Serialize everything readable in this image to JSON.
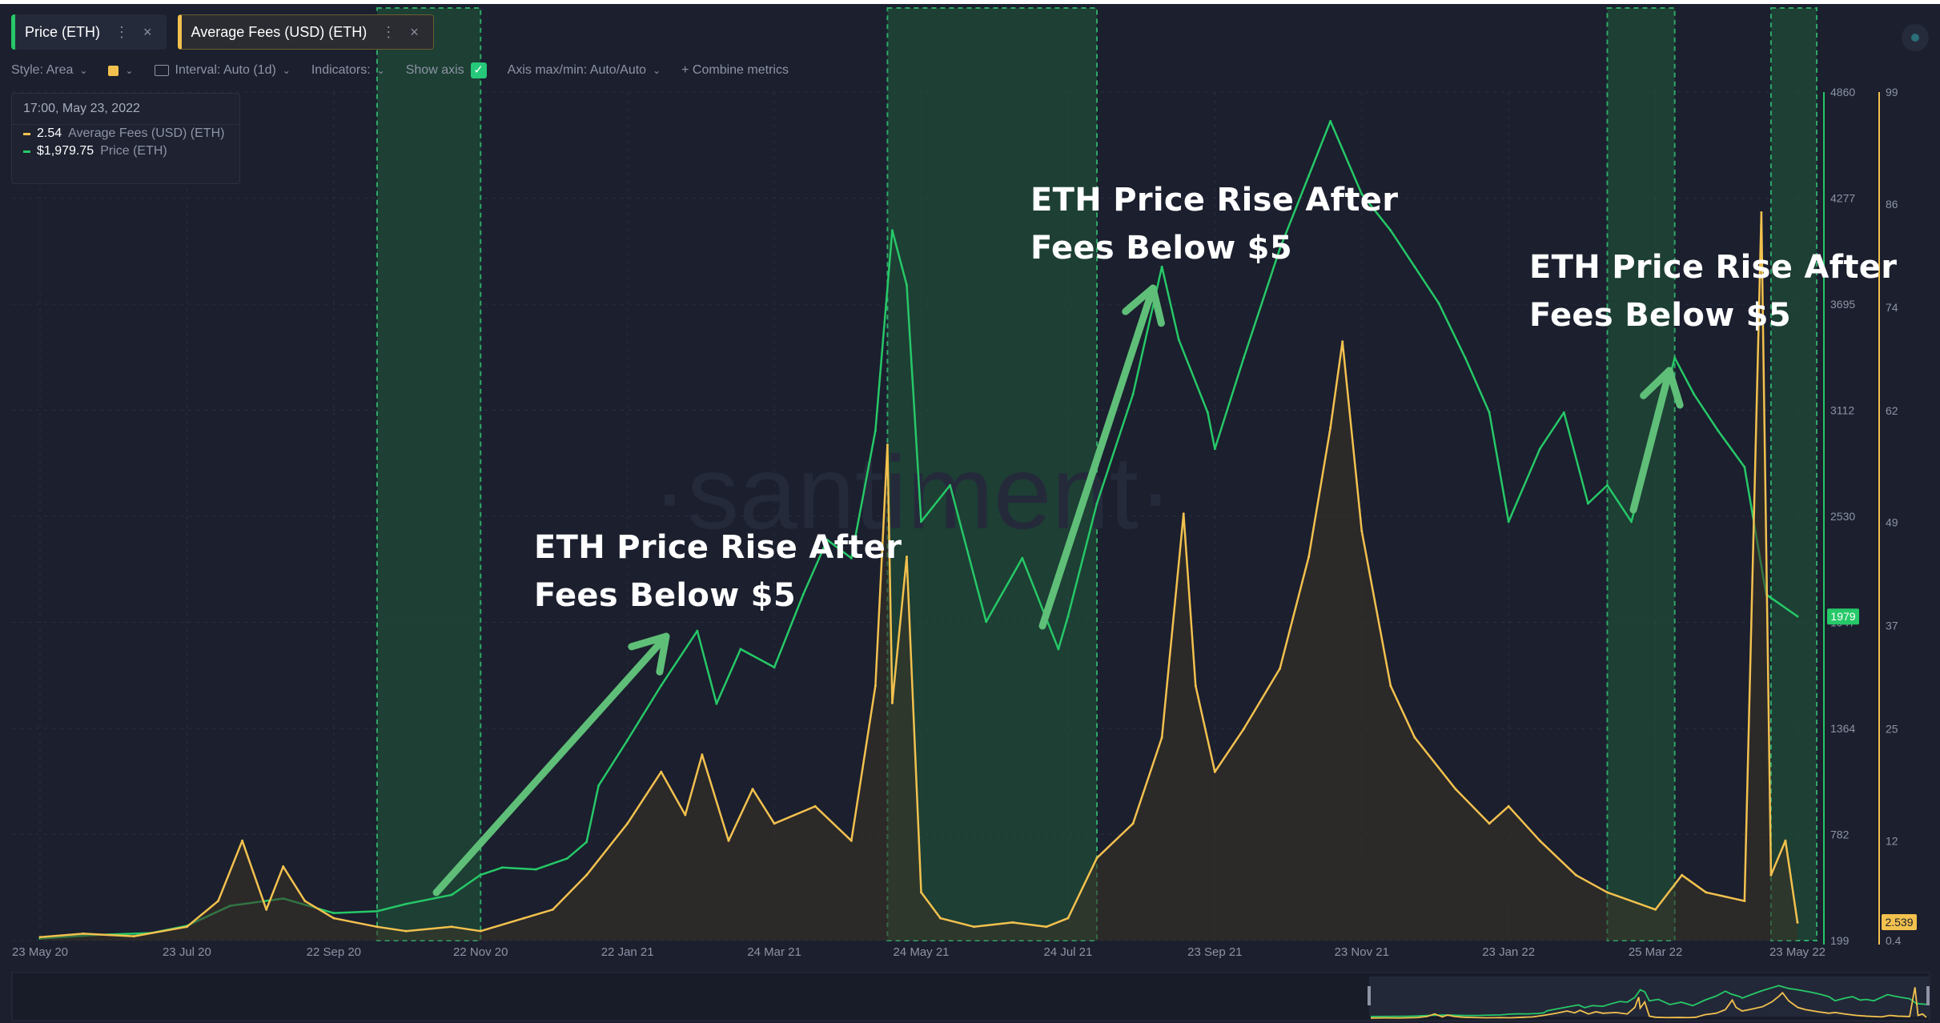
{
  "tabs": [
    {
      "label": "Price (ETH)",
      "dots": "⋮",
      "close": "×",
      "color": "#26c867"
    },
    {
      "label": "Average Fees (USD) (ETH)",
      "dots": "⋮",
      "close": "×",
      "color": "#f2c14e"
    }
  ],
  "toolbar": {
    "style": "Style: Area",
    "interval": "Interval: Auto (1d)",
    "indicators": "Indicators:",
    "show_axis": "Show axis",
    "axis_maxmin": "Axis max/min: Auto/Auto",
    "combine": "+ Combine metrics"
  },
  "legend": {
    "date": "17:00, May 23, 2022",
    "fees_value": "2.54",
    "fees_label": "Average Fees (USD) (ETH)",
    "price_value": "$1,979.75",
    "price_label": "Price (ETH)"
  },
  "watermark": "·santiment·",
  "annotations": [
    "ETH Price Rise After\nFees Below $5",
    "ETH Price Rise After\nFees Below $5",
    "ETH Price Rise After\nFees Below $5"
  ],
  "colors": {
    "background": "#1b1f2e",
    "price": "#26c867",
    "fees": "#f2c14e",
    "highlight": "#1f5a3a",
    "arrow": "#5fbf78"
  },
  "chart_data": {
    "type": "line",
    "x_tick_labels": [
      "23 May 20",
      "23 Jul 20",
      "22 Sep 20",
      "22 Nov 20",
      "22 Jan 21",
      "24 Mar 21",
      "24 May 21",
      "24 Jul 21",
      "23 Sep 21",
      "23 Nov 21",
      "23 Jan 22",
      "25 Mar 22",
      "23 May 22"
    ],
    "y_left_ticks": [
      199,
      782,
      1364,
      1947,
      2530,
      3112,
      3695,
      4277,
      4860
    ],
    "y_left_lim": [
      199,
      4860
    ],
    "y_right_ticks": [
      0.4,
      12,
      25,
      37,
      49,
      62,
      74,
      86,
      99
    ],
    "y_right_lim": [
      0.4,
      99
    ],
    "y_left_marker": "1979",
    "y_right_marker": "2.539",
    "series": [
      {
        "name": "Price (ETH)",
        "axis": "left",
        "color": "#26c867",
        "x": [
          "23 May 20",
          "15 Jun 20",
          "8 Jul 20",
          "23 Jul 20",
          "10 Aug 20",
          "1 Sep 20",
          "22 Sep 20",
          "10 Oct 20",
          "22 Oct 20",
          "10 Nov 20",
          "22 Nov 20",
          "1 Dec 20",
          "15 Dec 20",
          "28 Dec 20",
          "5 Jan 21",
          "10 Jan 21",
          "22 Jan 21",
          "5 Feb 21",
          "20 Feb 21",
          "28 Feb 21",
          "10 Mar 21",
          "24 Mar 21",
          "5 Apr 21",
          "15 Apr 21",
          "25 Apr 21",
          "5 May 21",
          "12 May 21",
          "18 May 21",
          "24 May 21",
          "5 Jun 21",
          "20 Jun 21",
          "5 Jul 21",
          "20 Jul 21",
          "24 Jul 21",
          "5 Aug 21",
          "20 Aug 21",
          "1 Sep 21",
          "8 Sep 21",
          "20 Sep 21",
          "23 Sep 21",
          "5 Oct 21",
          "20 Oct 21",
          "1 Nov 21",
          "10 Nov21",
          "23 Nov 21",
          "5 Dec 21",
          "15 Dec 21",
          "25 Dec 21",
          "5 Jan 22",
          "15 Jan 22",
          "23 Jan 22",
          "5 Feb 22",
          "15 Feb 22",
          "25 Feb 22",
          "5 Mar 22",
          "15 Mar 22",
          "25 Mar 22",
          "2 Apr 22",
          "10 Apr 22",
          "20 Apr 22",
          "1 May 22",
          "10 May 22",
          "23 May 22"
        ],
        "values": [
          210,
          230,
          240,
          280,
          390,
          430,
          350,
          360,
          400,
          450,
          560,
          600,
          590,
          650,
          740,
          1050,
          1300,
          1600,
          1900,
          1500,
          1800,
          1700,
          2100,
          2400,
          2300,
          3000,
          4100,
          3800,
          2500,
          2700,
          1950,
          2300,
          1800,
          1980,
          2600,
          3200,
          3900,
          3500,
          3100,
          2900,
          3400,
          4000,
          4400,
          4700,
          4300,
          4100,
          3900,
          3700,
          3400,
          3100,
          2500,
          2900,
          3100,
          2600,
          2700,
          2500,
          3000,
          3400,
          3200,
          3000,
          2800,
          2100,
          1980
        ]
      },
      {
        "name": "Average Fees (USD) (ETH)",
        "axis": "right",
        "color": "#f2c14e",
        "x": [
          "23 May 20",
          "10 Jun 20",
          "1 Jul 20",
          "23 Jul 20",
          "5 Aug 20",
          "15 Aug 20",
          "25 Aug 20",
          "1 Sep 20",
          "10 Sep 20",
          "22 Sep 20",
          "10 Oct 20",
          "22 Oct 20",
          "10 Nov 20",
          "22 Nov 20",
          "10 Dec 20",
          "22 Dec 20",
          "5 Jan 21",
          "22 Jan 21",
          "5 Feb 21",
          "15 Feb 21",
          "22 Feb 21",
          "5 Mar 21",
          "15 Mar 21",
          "24 Mar 21",
          "10 Apr 21",
          "25 Apr 21",
          "5 May 21",
          "10 May 21",
          "12 May 21",
          "18 May 21",
          "24 May 21",
          "1 Jun 21",
          "15 Jun 21",
          "1 Jul 21",
          "15 Jul 21",
          "24 Jul 21",
          "5 Aug 21",
          "20 Aug 21",
          "1 Sep 21",
          "10 Sep 21",
          "15 Sep 21",
          "23 Sep 21",
          "5 Oct 21",
          "20 Oct 21",
          "1 Nov 21",
          "10 Nov 21",
          "15 Nov 21",
          "23 Nov 21",
          "5 Dec 21",
          "15 Dec 21",
          "1 Jan 22",
          "15 Jan 22",
          "23 Jan 22",
          "5 Feb 22",
          "20 Feb 22",
          "5 Mar 22",
          "25 Mar 22",
          "5 Apr 22",
          "15 Apr 22",
          "1 May 22",
          "8 May 22",
          "12 May 22",
          "18 May 22",
          "23 May 22"
        ],
        "values": [
          0.8,
          1.2,
          0.9,
          2,
          5,
          12,
          4,
          9,
          5,
          3,
          2,
          1.5,
          2,
          1.5,
          3,
          4,
          8,
          14,
          20,
          15,
          22,
          12,
          18,
          14,
          16,
          12,
          30,
          58,
          28,
          45,
          6,
          3,
          2,
          2.5,
          2,
          3,
          10,
          14,
          24,
          50,
          30,
          20,
          25,
          32,
          45,
          60,
          70,
          48,
          30,
          24,
          18,
          14,
          16,
          12,
          8,
          6,
          4,
          8,
          6,
          5,
          85,
          8,
          12,
          2.5
        ]
      }
    ]
  }
}
